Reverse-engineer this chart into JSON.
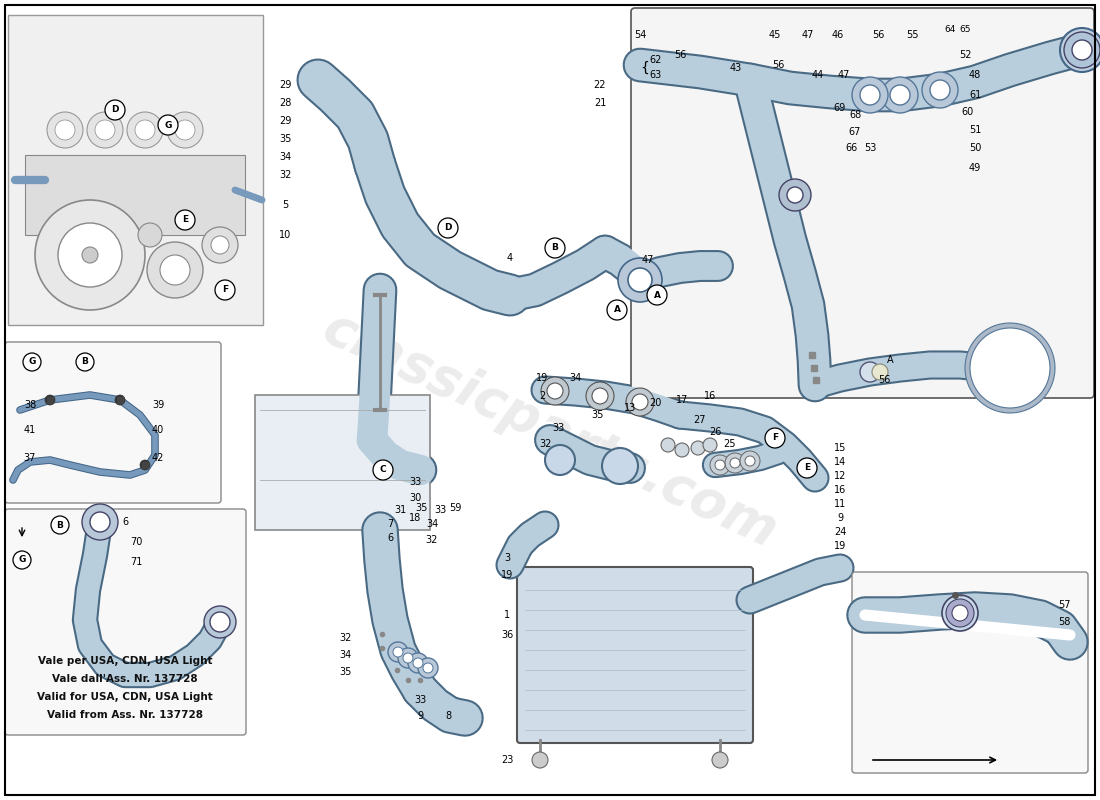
{
  "background_color": "#ffffff",
  "border_color": "#000000",
  "hose_fill": "#b8cedd",
  "hose_edge": "#4a6a84",
  "note_lines": [
    "Vale per USA, CDN, USA Light",
    "Vale dall'Ass. Nr. 137728",
    "Valid for USA, CDN, USA Light",
    "Valid from Ass. Nr. 137728"
  ],
  "watermark_lines": [
    "classicparts.com"
  ],
  "fig_width": 11.0,
  "fig_height": 8.0,
  "dpi": 100
}
